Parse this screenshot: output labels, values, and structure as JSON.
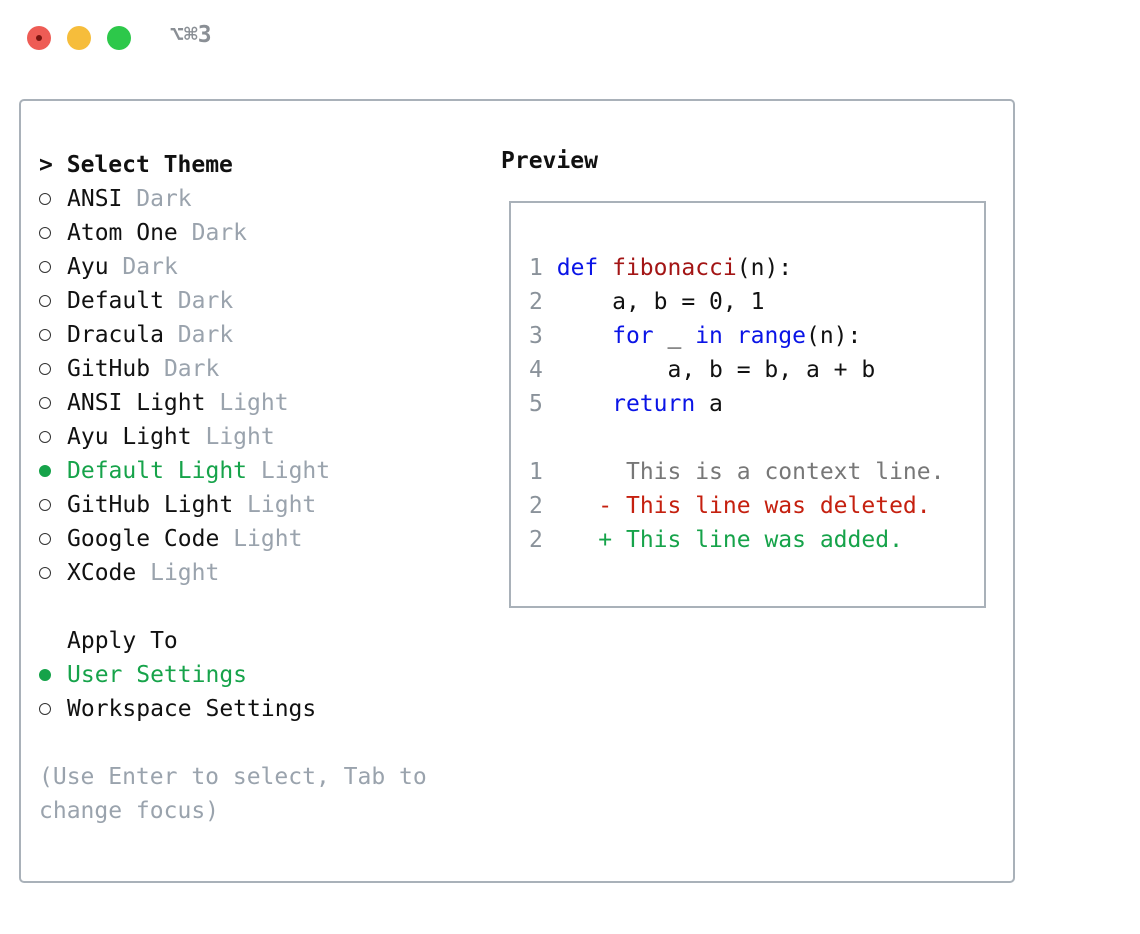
{
  "window": {
    "shortcut": "⌥⌘3"
  },
  "theme_selector": {
    "cursor": ">",
    "title": "Select Theme",
    "themes": [
      {
        "name": "ANSI",
        "variant": "Dark"
      },
      {
        "name": "Atom One",
        "variant": "Dark"
      },
      {
        "name": "Ayu",
        "variant": "Dark"
      },
      {
        "name": "Default",
        "variant": "Dark"
      },
      {
        "name": "Dracula",
        "variant": "Dark"
      },
      {
        "name": "GitHub",
        "variant": "Dark"
      },
      {
        "name": "ANSI Light",
        "variant": "Light"
      },
      {
        "name": "Ayu Light",
        "variant": "Light"
      },
      {
        "name": "Default Light",
        "variant": "Light",
        "selected": true
      },
      {
        "name": "GitHub Light",
        "variant": "Light"
      },
      {
        "name": "Google Code",
        "variant": "Light"
      },
      {
        "name": "XCode",
        "variant": "Light"
      }
    ]
  },
  "apply_to": {
    "title": "Apply To",
    "options": [
      {
        "label": "User Settings",
        "selected": true
      },
      {
        "label": "Workspace Settings"
      }
    ]
  },
  "hint": "(Use Enter to select, Tab to change focus)",
  "preview": {
    "title": "Preview",
    "code": [
      {
        "number": 1,
        "tokens": [
          {
            "text": "def",
            "kind": "keyword"
          },
          {
            "text": " fibonacci",
            "kind": "function"
          },
          {
            "text": "(n):",
            "kind": "plain"
          }
        ]
      },
      {
        "number": 2,
        "tokens": [
          {
            "text": "    a, b = 0, 1",
            "kind": "plain"
          }
        ]
      },
      {
        "number": 3,
        "tokens": [
          {
            "text": "    for",
            "kind": "keyword"
          },
          {
            "text": " _ ",
            "kind": "plain"
          },
          {
            "text": "in range",
            "kind": "keyword"
          },
          {
            "text": "(n):",
            "kind": "plain"
          }
        ]
      },
      {
        "number": 4,
        "tokens": [
          {
            "text": "        a, b = b, a + b",
            "kind": "plain"
          }
        ]
      },
      {
        "number": 5,
        "tokens": [
          {
            "text": "    return",
            "kind": "keyword"
          },
          {
            "text": " a",
            "kind": "plain"
          }
        ]
      }
    ],
    "diff": [
      {
        "number": 1,
        "text": "This is a context line.",
        "kind": "context"
      },
      {
        "number": 2,
        "sign": "-",
        "text": "This line was deleted.",
        "kind": "deleted"
      },
      {
        "number": 2,
        "sign": "+",
        "text": "This line was added.",
        "kind": "added"
      }
    ]
  }
}
